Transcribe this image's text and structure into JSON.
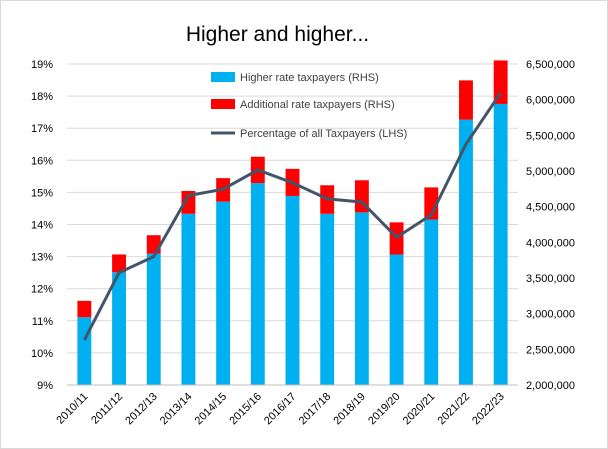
{
  "chart_data": {
    "type": "bar",
    "title": "Higher and higher...",
    "categories": [
      "2010/11",
      "2011/12",
      "2012/13",
      "2013/14",
      "2014/15",
      "2015/16",
      "2016/17",
      "2017/18",
      "2018/19",
      "2019/20",
      "2020/21",
      "2021/22",
      "2022/23"
    ],
    "series": [
      {
        "name": "Higher rate taxpayers (RHS)",
        "type": "stacked-bar",
        "axis": "right",
        "color": "#00b0f0",
        "values": [
          2950000,
          3580000,
          3840000,
          4400000,
          4570000,
          4830000,
          4650000,
          4400000,
          4420000,
          3830000,
          4320000,
          5720000,
          5940000
        ]
      },
      {
        "name": "Additional rate taxpayers (RHS)",
        "type": "stacked-bar",
        "axis": "right",
        "color": "#ff0000",
        "values": [
          230000,
          250000,
          260000,
          320000,
          330000,
          370000,
          380000,
          400000,
          450000,
          450000,
          450000,
          550000,
          610000
        ]
      },
      {
        "name": "Percentage of all Taxpayers (LHS)",
        "type": "line",
        "axis": "left",
        "color": "#44546a",
        "values": [
          10.4,
          12.5,
          13.0,
          14.9,
          15.1,
          15.7,
          15.3,
          14.8,
          14.7,
          13.6,
          14.3,
          16.5,
          18.1
        ]
      }
    ],
    "left_axis": {
      "min": 9,
      "max": 19,
      "ticks": [
        "9%",
        "10%",
        "11%",
        "12%",
        "13%",
        "14%",
        "15%",
        "16%",
        "17%",
        "18%",
        "19%"
      ]
    },
    "right_axis": {
      "min": 2000000,
      "max": 6500000,
      "ticks": [
        "2,000,000",
        "2,500,000",
        "3,000,000",
        "3,500,000",
        "4,000,000",
        "4,500,000",
        "5,000,000",
        "5,500,000",
        "6,000,000",
        "6,500,000"
      ]
    },
    "grid": true,
    "legend_position": "top-center"
  }
}
